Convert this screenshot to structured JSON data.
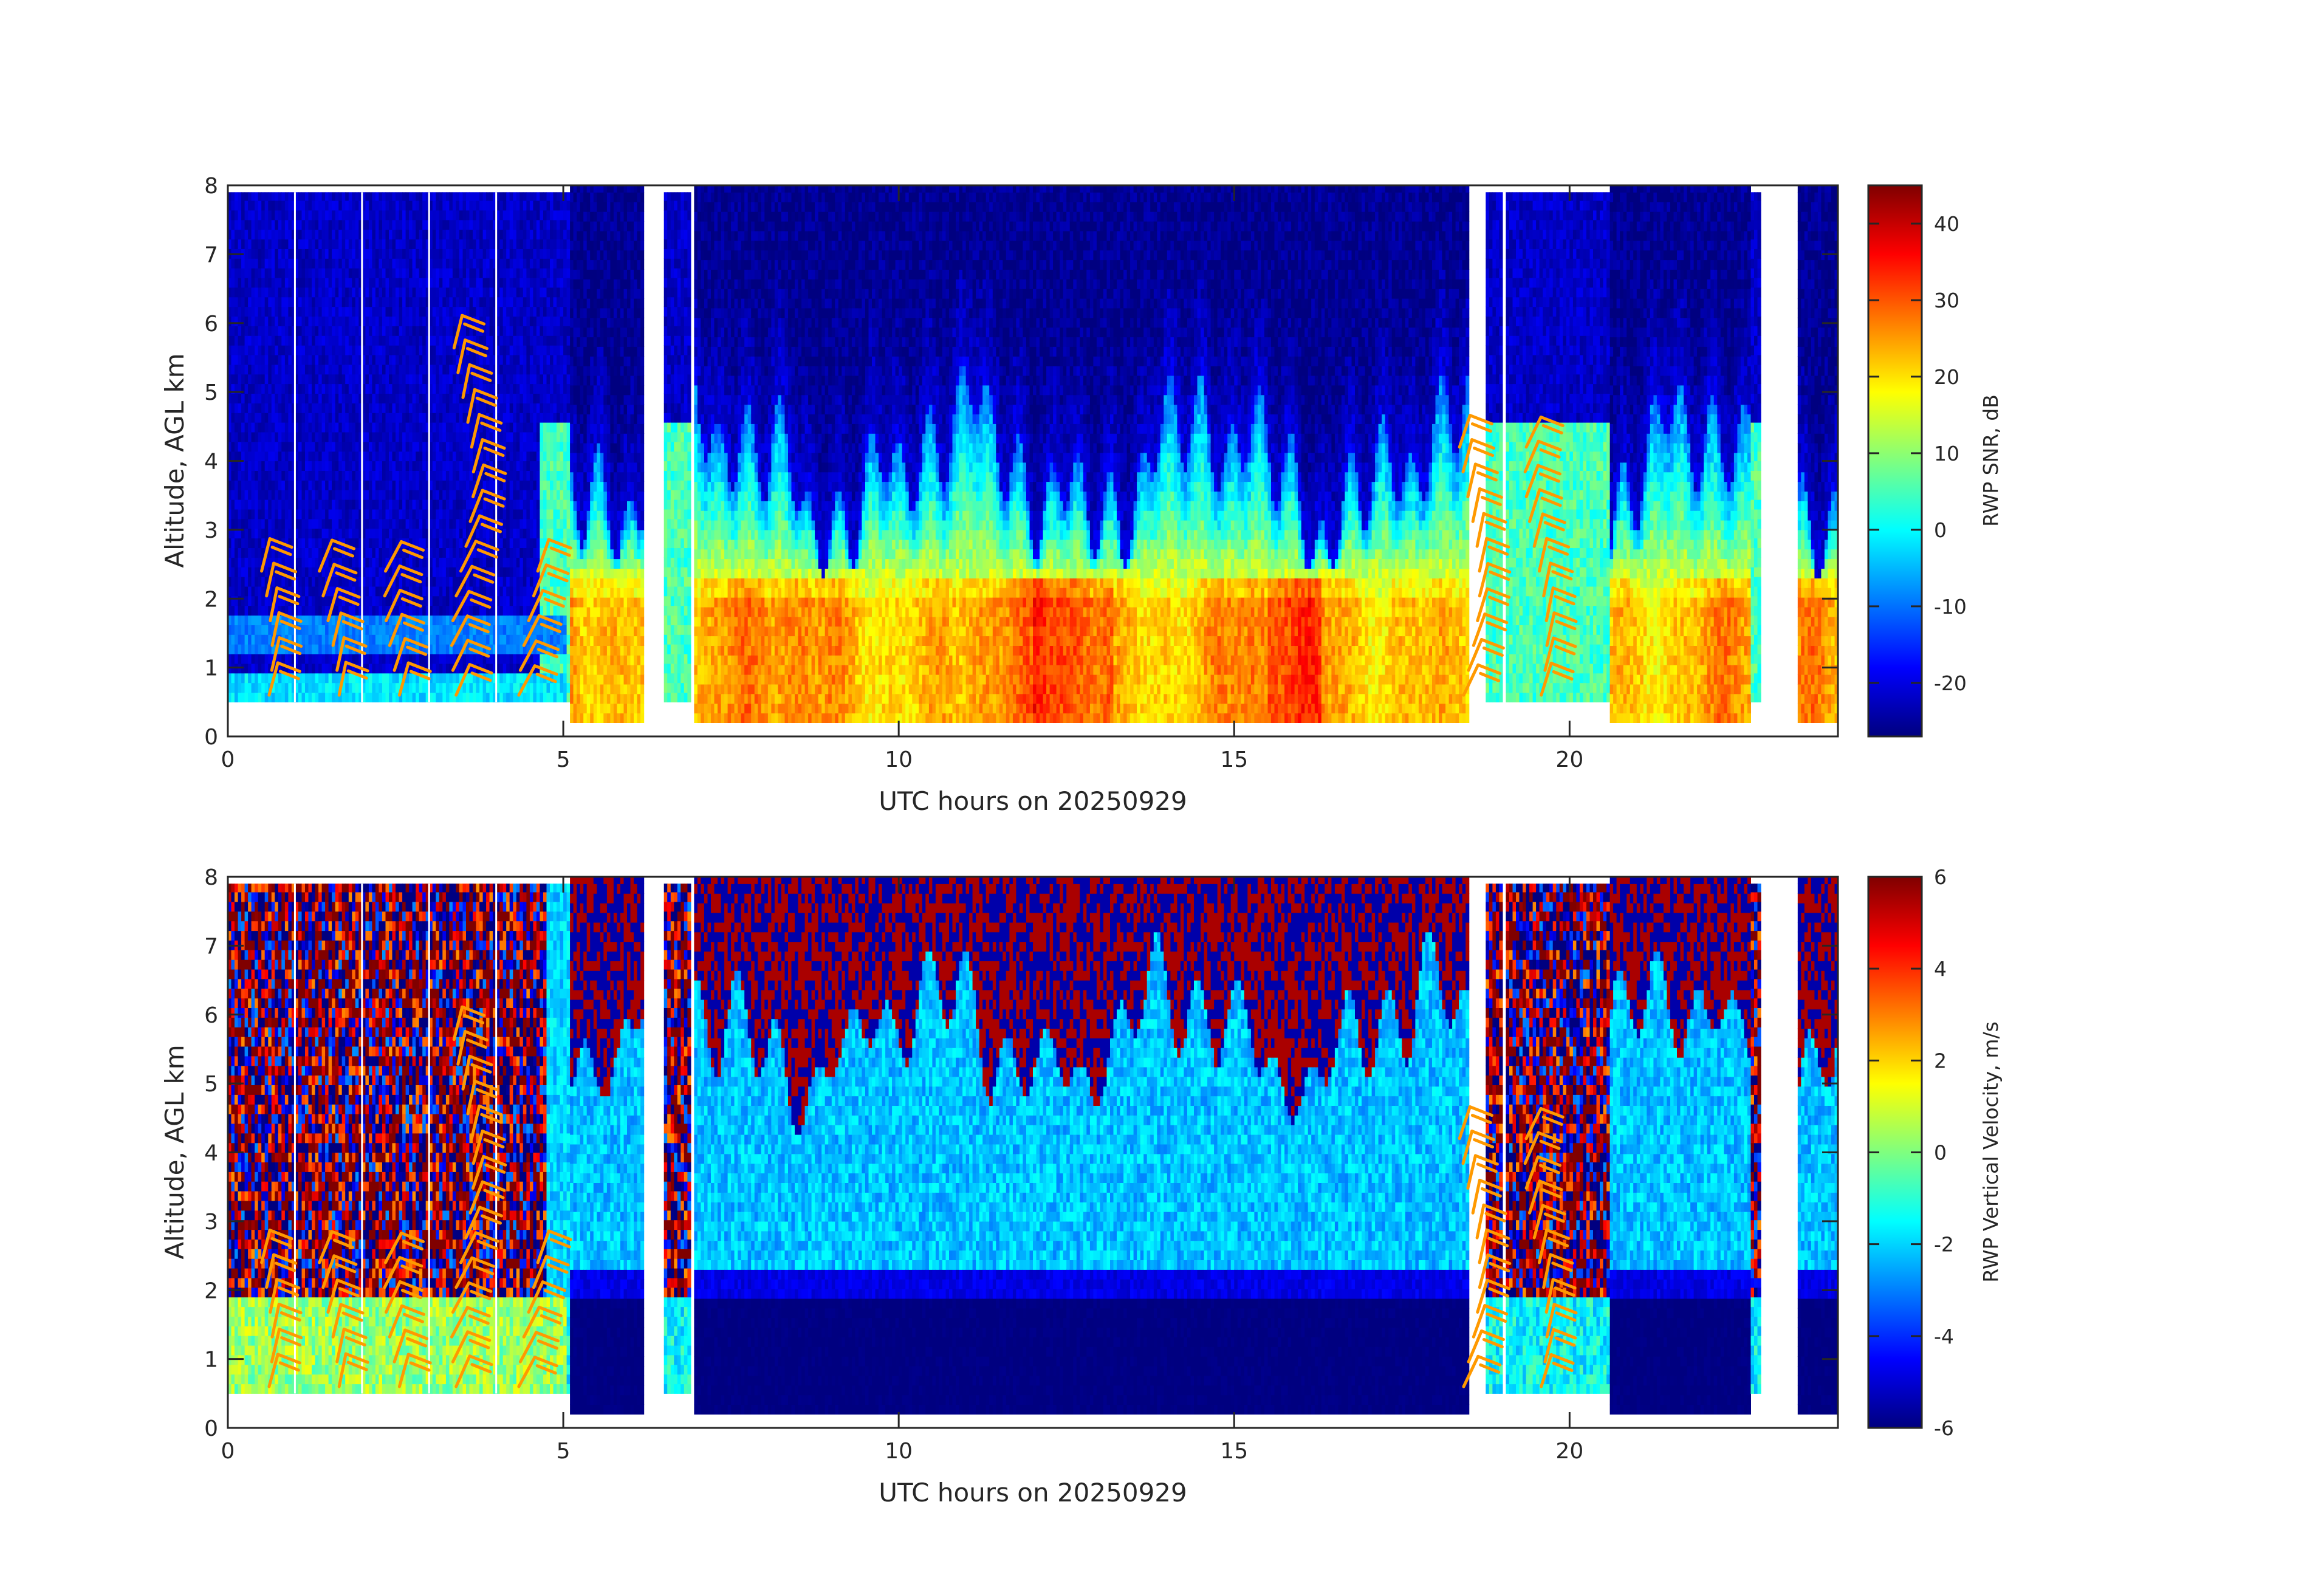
{
  "chart_data": [
    {
      "type": "heatmap",
      "name": "snr-panel",
      "title": "",
      "xlabel": "UTC hours on 20250929",
      "ylabel": "Altitude, AGL km",
      "colorbar_label": "RWP SNR, dB",
      "colormap": "jet",
      "xlim": [
        0,
        24
      ],
      "ylim": [
        0,
        8
      ],
      "clim": [
        -27,
        45
      ],
      "xticks": [
        0,
        5,
        10,
        15,
        20
      ],
      "xtick_labels": [
        "0",
        "5",
        "10",
        "15",
        "20"
      ],
      "yticks": [
        0,
        1,
        2,
        3,
        4,
        5,
        6,
        7,
        8
      ],
      "ytick_labels": [
        "0",
        "1",
        "2",
        "3",
        "4",
        "5",
        "6",
        "7",
        "8"
      ],
      "cticks": [
        -20,
        -10,
        0,
        10,
        20,
        30,
        40
      ],
      "ctick_labels": [
        "-20",
        "-10",
        "0",
        "10",
        "20",
        "30",
        "40"
      ],
      "data_segments": [
        {
          "t_start": 0.0,
          "t_end": 5.1,
          "alt_min": 0.5,
          "alt_max": 7.9,
          "mode": "low-mode"
        },
        {
          "t_start": 5.1,
          "t_end": 6.2,
          "alt_min": 0.2,
          "alt_max": 8.0,
          "mode": "high-mode"
        },
        {
          "t_start": 6.5,
          "t_end": 6.9,
          "alt_min": 0.5,
          "alt_max": 7.9,
          "mode": "low-mode"
        },
        {
          "t_start": 6.95,
          "t_end": 18.5,
          "alt_min": 0.2,
          "alt_max": 8.0,
          "mode": "high-mode"
        },
        {
          "t_start": 18.75,
          "t_end": 19.0,
          "alt_min": 0.5,
          "alt_max": 7.9,
          "mode": "low-mode"
        },
        {
          "t_start": 19.05,
          "t_end": 20.6,
          "alt_min": 0.5,
          "alt_max": 7.9,
          "mode": "low-mode"
        },
        {
          "t_start": 20.6,
          "t_end": 22.7,
          "alt_min": 0.2,
          "alt_max": 8.0,
          "mode": "high-mode"
        },
        {
          "t_start": 22.7,
          "t_end": 22.85,
          "alt_min": 0.5,
          "alt_max": 7.9,
          "mode": "low-mode"
        },
        {
          "t_start": 23.4,
          "t_end": 24.0,
          "alt_min": 0.2,
          "alt_max": 8.0,
          "mode": "high-mode"
        }
      ],
      "profile_summary": {
        "boundary_layer_top_km": 2.3,
        "boundary_layer_snr_db": [
          15,
          35
        ],
        "free_troposphere_snr_db": [
          -25,
          10
        ],
        "peak_echo_top_km": [
          3.5,
          6.5
        ]
      },
      "wind_barb_times": [
        0.5,
        1.5,
        2.5,
        3.5,
        4.5,
        18.5,
        19.5
      ]
    },
    {
      "type": "heatmap",
      "name": "velocity-panel",
      "title": "",
      "xlabel": "UTC hours on 20250929",
      "ylabel": "Altitude, AGL km",
      "colorbar_label": "RWP Vertical Velocity, m/s",
      "colormap": "jet",
      "xlim": [
        0,
        24
      ],
      "ylim": [
        0,
        8
      ],
      "clim": [
        -6,
        6
      ],
      "xticks": [
        0,
        5,
        10,
        15,
        20
      ],
      "xtick_labels": [
        "0",
        "5",
        "10",
        "15",
        "20"
      ],
      "yticks": [
        0,
        1,
        2,
        3,
        4,
        5,
        6,
        7,
        8
      ],
      "ytick_labels": [
        "0",
        "1",
        "2",
        "3",
        "4",
        "5",
        "6",
        "7",
        "8"
      ],
      "cticks": [
        -6,
        -4,
        -2,
        0,
        2,
        4,
        6
      ],
      "ctick_labels": [
        "-6",
        "-4",
        "-2",
        "0",
        "2",
        "4",
        "6"
      ],
      "profile_summary": {
        "boundary_layer_velocity_ms": -6,
        "mid_level_velocity_ms": -2,
        "noisy_upper_levels_ms": [
          -6,
          6
        ]
      },
      "wind_barb_times": [
        0.5,
        1.5,
        2.5,
        3.5,
        4.5,
        18.5,
        19.5
      ]
    }
  ],
  "colors": {
    "barb": "#ff9900",
    "axis": "#262626",
    "jet_stops": [
      "#00007f",
      "#0000ff",
      "#007fff",
      "#00ffff",
      "#7fff7f",
      "#ffff00",
      "#ff7f00",
      "#ff0000",
      "#7f0000"
    ]
  }
}
